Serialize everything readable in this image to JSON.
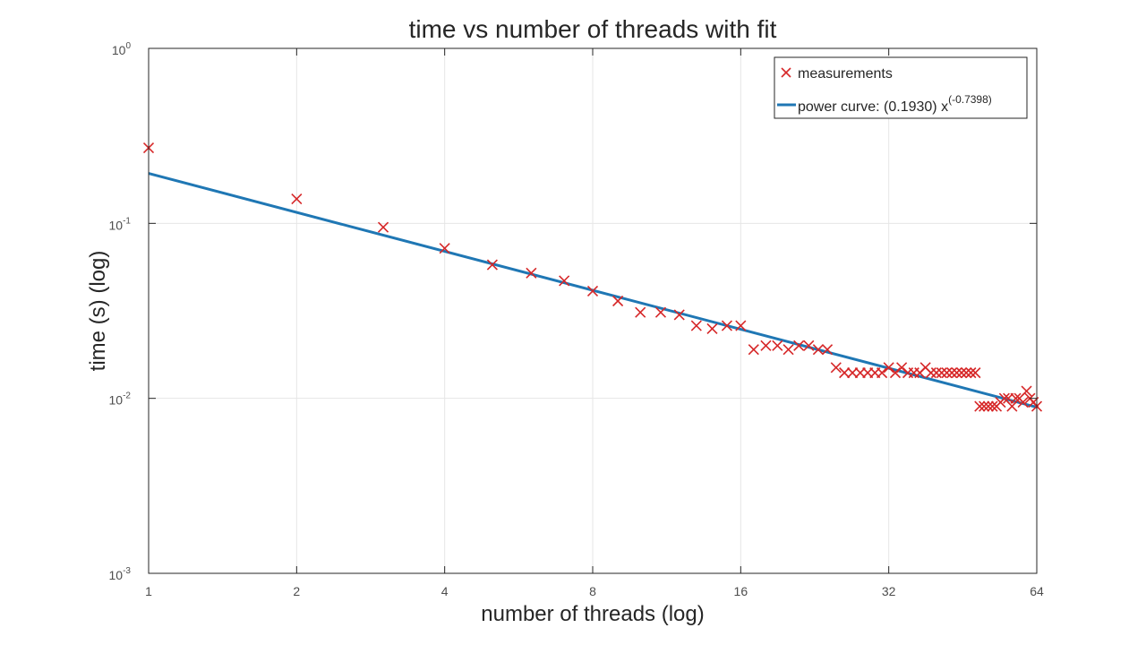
{
  "chart_data": {
    "type": "scatter",
    "title": "time vs number of threads with fit",
    "xlabel": "number of threads (log)",
    "ylabel": "time (s) (log)",
    "xscale": "log2",
    "yscale": "log10",
    "xlim": [
      1,
      64
    ],
    "ylim": [
      0.001,
      1
    ],
    "x_ticks": [
      1,
      2,
      4,
      8,
      16,
      32,
      64
    ],
    "x_tick_labels": [
      "1",
      "2",
      "4",
      "8",
      "16",
      "32",
      "64"
    ],
    "y_ticks": [
      {
        "base": "10",
        "exp": "-3",
        "value": 0.001
      },
      {
        "base": "10",
        "exp": "-2",
        "value": 0.01
      },
      {
        "base": "10",
        "exp": "-1",
        "value": 0.1
      },
      {
        "base": "10",
        "exp": "0",
        "value": 1
      }
    ],
    "grid": true,
    "legend_position": "top-right",
    "series": [
      {
        "name": "measurements",
        "kind": "scatter",
        "marker": "x",
        "color": "#d62728",
        "points": [
          [
            1,
            0.27
          ],
          [
            2,
            0.138
          ],
          [
            3,
            0.095
          ],
          [
            4,
            0.072
          ],
          [
            5,
            0.058
          ],
          [
            6,
            0.052
          ],
          [
            7,
            0.047
          ],
          [
            8,
            0.041
          ],
          [
            9,
            0.036
          ],
          [
            10,
            0.031
          ],
          [
            11,
            0.031
          ],
          [
            12,
            0.03
          ],
          [
            13,
            0.026
          ],
          [
            14,
            0.025
          ],
          [
            15,
            0.026
          ],
          [
            16,
            0.026
          ],
          [
            17,
            0.019
          ],
          [
            18,
            0.02
          ],
          [
            19,
            0.02
          ],
          [
            20,
            0.019
          ],
          [
            21,
            0.02
          ],
          [
            22,
            0.02
          ],
          [
            23,
            0.019
          ],
          [
            24,
            0.019
          ],
          [
            25,
            0.015
          ],
          [
            26,
            0.014
          ],
          [
            27,
            0.014
          ],
          [
            28,
            0.014
          ],
          [
            29,
            0.014
          ],
          [
            30,
            0.014
          ],
          [
            31,
            0.014
          ],
          [
            32,
            0.015
          ],
          [
            33,
            0.014
          ],
          [
            34,
            0.015
          ],
          [
            35,
            0.014
          ],
          [
            36,
            0.014
          ],
          [
            37,
            0.014
          ],
          [
            38,
            0.015
          ],
          [
            39,
            0.014
          ],
          [
            40,
            0.014
          ],
          [
            41,
            0.014
          ],
          [
            42,
            0.014
          ],
          [
            43,
            0.014
          ],
          [
            44,
            0.014
          ],
          [
            45,
            0.014
          ],
          [
            46,
            0.014
          ],
          [
            47,
            0.014
          ],
          [
            48,
            0.014
          ],
          [
            49,
            0.009
          ],
          [
            50,
            0.009
          ],
          [
            51,
            0.009
          ],
          [
            52,
            0.009
          ],
          [
            53,
            0.009
          ],
          [
            54,
            0.0095
          ],
          [
            55,
            0.01
          ],
          [
            56,
            0.01
          ],
          [
            57,
            0.009
          ],
          [
            58,
            0.01
          ],
          [
            59,
            0.01
          ],
          [
            60,
            0.0095
          ],
          [
            61,
            0.011
          ],
          [
            62,
            0.01
          ],
          [
            63,
            0.0095
          ],
          [
            64,
            0.009
          ]
        ]
      },
      {
        "name": "power curve: (0.1930) x",
        "name_exponent": "(-0.7398)",
        "kind": "line",
        "color": "#1f77b4",
        "coefficient": 0.193,
        "exponent": -0.7398
      }
    ]
  }
}
